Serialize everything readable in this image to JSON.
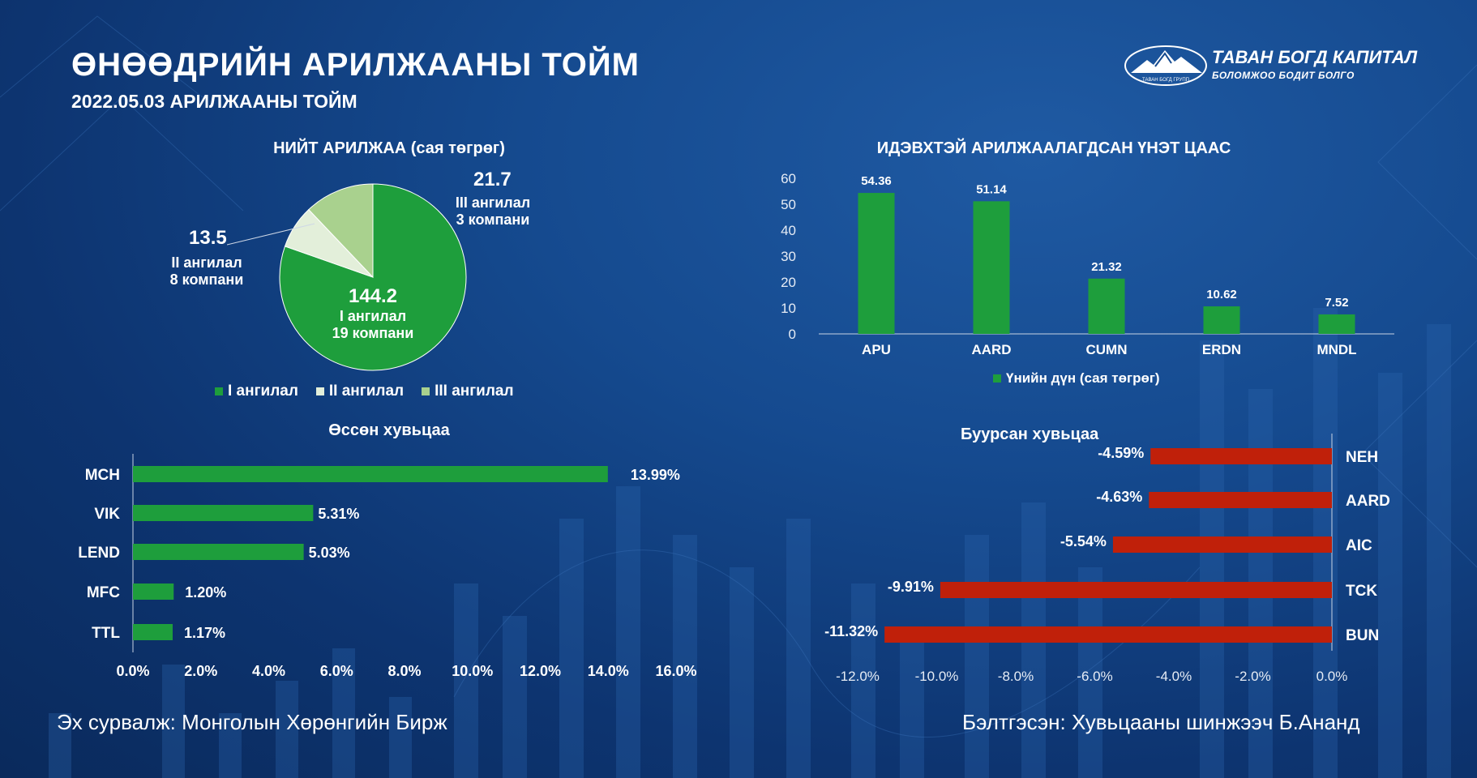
{
  "header": {
    "title": "ӨНӨӨДРИЙН АРИЛЖААНЫ ТОЙМ",
    "subtitle": "2022.05.03 АРИЛЖААНЫ ТОЙМ"
  },
  "logo": {
    "name": "ТАВАН БОГД КАПИТАЛ",
    "tagline": "БОЛОМЖОО БОДИТ БОЛГО",
    "small": "ТАВАН БОГД ГРУПП"
  },
  "colors": {
    "green": "#1e9e3c",
    "light_green": "#a9d18e",
    "pale_green": "#e3efda",
    "red": "#c0200a"
  },
  "chart_data": [
    {
      "id": "total-trading",
      "type": "pie",
      "title": "НИЙТ АРИЛЖАА (сая төгрөг)",
      "slices": [
        {
          "name": "I ангилал",
          "value": 144.2,
          "value_label": "144.2",
          "detail": "I ангилал",
          "companies": "19 компани",
          "color": "#1e9e3c"
        },
        {
          "name": "II ангилал",
          "value": 13.5,
          "value_label": "13.5",
          "detail": "II ангилал",
          "companies": "8 компани",
          "color": "#e3efda"
        },
        {
          "name": "III ангилал",
          "value": 21.7,
          "value_label": "21.7",
          "detail": "III ангилал",
          "companies": "3 компани",
          "color": "#a9d18e"
        }
      ],
      "legend": [
        "I ангилал",
        "II ангилал",
        "III ангилал"
      ]
    },
    {
      "id": "active-securities",
      "type": "bar",
      "title": "ИДЭВХТЭЙ АРИЛЖААЛАГДСАН ҮНЭТ ЦААС",
      "categories": [
        "APU",
        "AARD",
        "CUMN",
        "ERDN",
        "MNDL"
      ],
      "values": [
        54.36,
        51.14,
        21.32,
        10.62,
        7.52
      ],
      "ylim": [
        0,
        60
      ],
      "yticks": [
        "0",
        "10",
        "20",
        "30",
        "40",
        "50",
        "60"
      ],
      "legend": "Үнийн дүн (сая төгрөг)"
    },
    {
      "id": "gainers",
      "type": "bar",
      "orientation": "horizontal",
      "title": "Өссөн хувьцаа",
      "categories": [
        "MCH",
        "VIK",
        "LEND",
        "MFC",
        "TTL"
      ],
      "values": [
        13.99,
        5.31,
        5.03,
        1.2,
        1.17
      ],
      "value_labels": [
        "13.99%",
        "5.31%",
        "5.03%",
        "1.20%",
        "1.17%"
      ],
      "xlim": [
        0,
        16
      ],
      "xticks": [
        "0.0%",
        "2.0%",
        "4.0%",
        "6.0%",
        "8.0%",
        "10.0%",
        "12.0%",
        "14.0%",
        "16.0%"
      ]
    },
    {
      "id": "losers",
      "type": "bar",
      "orientation": "horizontal",
      "title": "Буурсан хувьцаа",
      "categories": [
        "NEH",
        "AARD",
        "AIC",
        "TCK",
        "BUN"
      ],
      "values": [
        -4.59,
        -4.63,
        -5.54,
        -9.91,
        -11.32
      ],
      "value_labels": [
        "-4.59%",
        "-4.63%",
        "-5.54%",
        "-9.91%",
        "-11.32%"
      ],
      "xlim": [
        -12,
        0
      ],
      "xticks": [
        "-12.0%",
        "-10.0%",
        "-8.0%",
        "-6.0%",
        "-4.0%",
        "-2.0%",
        "0.0%"
      ]
    }
  ],
  "footer": {
    "source": "Эх сурвалж: Монголын Хөрөнгийн Бирж",
    "prepared": "Бэлтгэсэн: Хувьцааны шинжээч Б.Ананд"
  }
}
